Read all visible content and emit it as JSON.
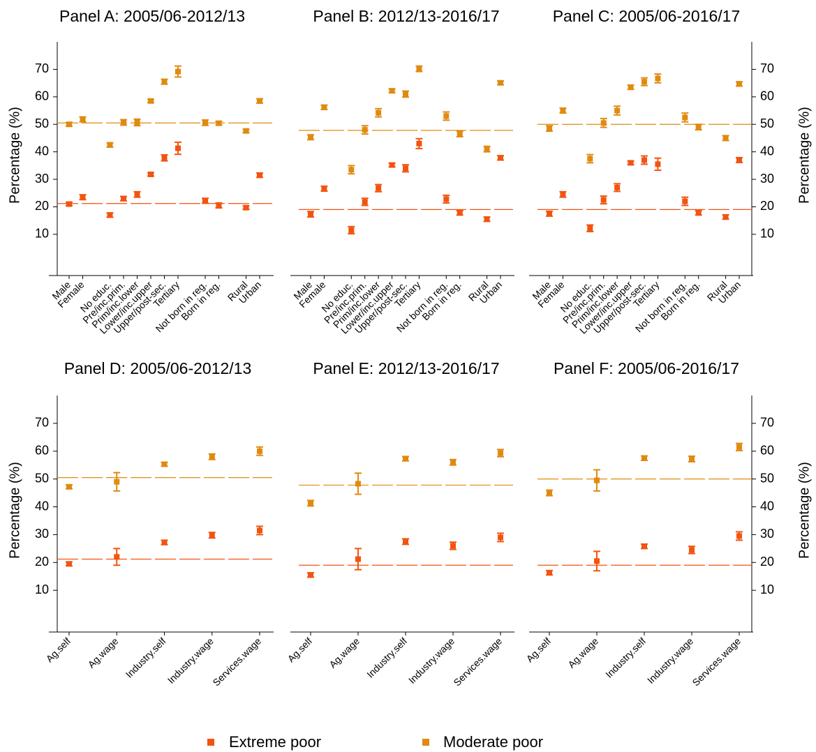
{
  "chart_data": [
    {
      "type": "dot",
      "title": "Panel A: 2005/06-2012/13",
      "y_label": "Percentage (%)",
      "y_axis": "left",
      "categories": [
        "Male",
        "Female",
        null,
        "No educ.",
        "Pre/inc.prim.",
        "Prim/inc.lower",
        "Lower/inc.upper",
        "Upper/post-sec.",
        "Tertiary",
        null,
        "Not born in reg.",
        "Born in reg.",
        null,
        "Rural",
        "Urban"
      ],
      "ylim": [
        -5,
        80
      ],
      "yticks": [
        10,
        20,
        30,
        40,
        50,
        60,
        70
      ],
      "series": [
        {
          "name": "Extreme poor",
          "color": "#f25410",
          "reference": 21.2,
          "values": [
            21,
            23.5,
            null,
            17,
            23,
            24.5,
            31.8,
            37.8,
            41.3,
            null,
            22.2,
            20.5,
            null,
            19.7,
            31.5
          ],
          "errors": [
            0.6,
            0.9,
            null,
            0.8,
            0.8,
            1,
            0.6,
            1.1,
            2.2,
            null,
            0.9,
            0.9,
            null,
            0.6,
            0.8
          ]
        },
        {
          "name": "Moderate poor",
          "color": "#e08a10",
          "reference": 50.5,
          "values": [
            50,
            51.8,
            null,
            42.5,
            50.7,
            50.7,
            58.5,
            65.5,
            69.2,
            null,
            50.6,
            50.4,
            null,
            47.6,
            58.5
          ],
          "errors": [
            0.7,
            0.9,
            null,
            0.8,
            1,
            1.2,
            0.6,
            0.9,
            2,
            null,
            1,
            0.7,
            null,
            0.6,
            0.8
          ]
        }
      ]
    },
    {
      "type": "dot",
      "title": "Panel B: 2012/13-2016/17",
      "categories": [
        "Male",
        "Female",
        null,
        "No educ.",
        "Pre/inc.prim.",
        "Prim/inc.lower",
        "Lower/inc.upper",
        "Upper/post-sec.",
        "Tertiary",
        null,
        "Not born in reg.",
        "Born in reg.",
        null,
        "Rural",
        "Urban"
      ],
      "ylim": [
        -5,
        80
      ],
      "series": [
        {
          "name": "Extreme poor",
          "color": "#f25410",
          "reference": 19,
          "values": [
            17.3,
            26.6,
            null,
            11.5,
            21.8,
            26.8,
            35.2,
            34,
            43,
            null,
            22.8,
            17.8,
            null,
            15.5,
            37.8
          ],
          "errors": [
            1,
            0.9,
            null,
            1.3,
            1.3,
            1.3,
            0.7,
            1.3,
            1.8,
            null,
            1.4,
            0.8,
            null,
            0.8,
            0.8
          ]
        },
        {
          "name": "Moderate poor",
          "color": "#e08a10",
          "reference": 47.8,
          "values": [
            45.3,
            56.2,
            null,
            33.5,
            48,
            54.2,
            62.2,
            61,
            70.2,
            null,
            53,
            46.5,
            null,
            41,
            65.1
          ],
          "errors": [
            0.9,
            0.8,
            null,
            1.5,
            1.5,
            1.5,
            0.7,
            1.1,
            1,
            null,
            1.5,
            1,
            null,
            1,
            0.7
          ]
        }
      ]
    },
    {
      "type": "dot",
      "title": "Panel C: 2005/06-2016/17",
      "y_label": "Percentage (%)",
      "y_axis": "right",
      "categories": [
        "Male",
        "Female",
        null,
        "No educ.",
        "Pre/inc.prim.",
        "Prim/inc.lower",
        "Lower/inc.upper",
        "Upper/post-sec.",
        "Tertiary",
        null,
        "Not born in reg.",
        "Born in reg.",
        null,
        "Rural",
        "Urban"
      ],
      "ylim": [
        -5,
        80
      ],
      "yticks": [
        10,
        20,
        30,
        40,
        50,
        60,
        70
      ],
      "series": [
        {
          "name": "Extreme poor",
          "color": "#f25410",
          "reference": 19,
          "values": [
            17.5,
            24.5,
            null,
            12.2,
            22.5,
            27,
            36,
            37,
            35.5,
            null,
            22,
            17.8,
            null,
            16.3,
            37
          ],
          "errors": [
            0.9,
            1,
            null,
            1.2,
            1.4,
            1.4,
            0.6,
            1.5,
            2.2,
            null,
            1.5,
            0.8,
            null,
            0.8,
            0.9
          ]
        },
        {
          "name": "Moderate poor",
          "color": "#e08a10",
          "reference": 50,
          "values": [
            48.5,
            55,
            null,
            37.5,
            50.5,
            55,
            63.5,
            65.5,
            66.7,
            null,
            52.5,
            49,
            null,
            45,
            64.7
          ],
          "errors": [
            1,
            0.9,
            null,
            1.5,
            1.6,
            1.6,
            0.8,
            1.4,
            1.6,
            null,
            1.6,
            1,
            null,
            0.9,
            0.8
          ]
        }
      ]
    },
    {
      "type": "dot",
      "title": "Panel D: 2005/06-2012/13",
      "y_label": "Percentage (%)",
      "y_axis": "left",
      "categories": [
        "Ag.self",
        "Ag.wage",
        "Industry.self",
        "Industry.wage",
        "Services.wage"
      ],
      "ylim": [
        -5,
        80
      ],
      "yticks": [
        10,
        20,
        30,
        40,
        50,
        60,
        70
      ],
      "series": [
        {
          "name": "Extreme poor",
          "color": "#f25410",
          "reference": 21.2,
          "values": [
            19.5,
            22,
            27.2,
            29.8,
            31.5
          ],
          "errors": [
            0.7,
            3,
            0.8,
            1,
            1.5
          ]
        },
        {
          "name": "Moderate poor",
          "color": "#e08a10",
          "reference": 50.5,
          "values": [
            47.2,
            49,
            55.3,
            58,
            60
          ],
          "errors": [
            0.7,
            3.3,
            0.7,
            1,
            1.5
          ]
        }
      ]
    },
    {
      "type": "dot",
      "title": "Panel E: 2012/13-2016/17",
      "categories": [
        "Ag.self",
        "Ag.wage",
        "Industry.self",
        "Industry.wage",
        "Services.wage"
      ],
      "ylim": [
        -5,
        80
      ],
      "series": [
        {
          "name": "Extreme poor",
          "color": "#f25410",
          "reference": 19,
          "values": [
            15.5,
            21.2,
            27.5,
            26,
            29
          ],
          "errors": [
            0.8,
            3.8,
            1,
            1.3,
            1.5
          ]
        },
        {
          "name": "Moderate poor",
          "color": "#e08a10",
          "reference": 47.8,
          "values": [
            41.3,
            48.3,
            57.3,
            56,
            59.3
          ],
          "errors": [
            1,
            3.8,
            0.8,
            1,
            1.3
          ]
        }
      ]
    },
    {
      "type": "dot",
      "title": "Panel F: 2005/06-2016/17",
      "y_label": "Percentage (%)",
      "y_axis": "right",
      "categories": [
        "Ag.self",
        "Ag.wage",
        "Industry.self",
        "Industry.wage",
        "Services.wage"
      ],
      "ylim": [
        -5,
        80
      ],
      "yticks": [
        10,
        20,
        30,
        40,
        50,
        60,
        70
      ],
      "series": [
        {
          "name": "Extreme poor",
          "color": "#f25410",
          "reference": 19,
          "values": [
            16.3,
            20.5,
            25.8,
            24.5,
            29.5
          ],
          "errors": [
            0.8,
            3.5,
            0.8,
            1.3,
            1.5
          ]
        },
        {
          "name": "Moderate poor",
          "color": "#e08a10",
          "reference": 50,
          "values": [
            45,
            49.5,
            57.5,
            57.2,
            61.5
          ],
          "errors": [
            1,
            3.8,
            0.8,
            1,
            1.3
          ]
        }
      ]
    }
  ]
}
